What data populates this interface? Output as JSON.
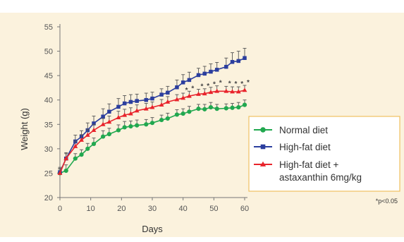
{
  "chart_data": {
    "type": "line",
    "title": "",
    "xlabel": "Days",
    "ylabel": "Weight (g)",
    "xlim": [
      0,
      60
    ],
    "ylim": [
      20,
      55
    ],
    "x_ticks": [
      0,
      10,
      20,
      30,
      40,
      50,
      60
    ],
    "y_ticks": [
      20,
      25,
      30,
      35,
      40,
      45,
      50,
      55
    ],
    "grid": false,
    "legend_position": "lower-right",
    "note": "*p<0.05",
    "x": [
      0,
      2,
      5,
      7,
      9,
      11,
      14,
      16,
      19,
      21,
      23,
      25,
      28,
      30,
      33,
      35,
      38,
      40,
      42,
      45,
      47,
      49,
      51,
      54,
      56,
      58,
      60
    ],
    "series": [
      {
        "name": "Normal diet",
        "color": "#21a84f",
        "marker": "circle",
        "values": [
          25.0,
          25.5,
          28.0,
          28.8,
          30.0,
          31.0,
          32.5,
          33.0,
          33.8,
          34.4,
          34.6,
          34.8,
          35.0,
          35.3,
          35.9,
          36.2,
          37.0,
          37.2,
          37.6,
          38.2,
          38.1,
          38.5,
          38.2,
          38.3,
          38.4,
          38.5,
          39.0
        ],
        "error": [
          0.8,
          1.2,
          1.0,
          1.0,
          1.1,
          1.2,
          1.2,
          1.2,
          1.1,
          1.2,
          1.1,
          1.1,
          1.0,
          1.1,
          1.0,
          1.1,
          1.0,
          1.0,
          1.1,
          0.9,
          1.0,
          1.0,
          0.9,
          0.9,
          0.9,
          1.0,
          1.0
        ]
      },
      {
        "name": "High-fat diet",
        "color": "#2b3e9e",
        "marker": "square",
        "values": [
          25.2,
          28.0,
          31.5,
          32.5,
          33.8,
          35.2,
          36.6,
          37.6,
          38.6,
          39.3,
          39.6,
          39.8,
          40.0,
          40.3,
          41.1,
          41.5,
          42.6,
          43.6,
          44.1,
          45.1,
          45.4,
          45.8,
          46.2,
          46.8,
          47.8,
          48.0,
          48.6
        ],
        "error": [
          1.0,
          1.2,
          1.3,
          1.2,
          1.5,
          1.5,
          1.6,
          1.6,
          1.7,
          1.6,
          1.5,
          1.4,
          1.4,
          1.3,
          1.2,
          1.3,
          1.5,
          1.6,
          1.6,
          1.4,
          1.5,
          1.6,
          1.5,
          1.8,
          1.9,
          2.0,
          2.0
        ]
      },
      {
        "name": "High-fat diet + astaxanthin 6mg/kg",
        "color": "#e8232b",
        "marker": "triangle",
        "values": [
          25.0,
          28.0,
          30.5,
          31.8,
          32.8,
          33.8,
          35.0,
          35.5,
          36.4,
          36.9,
          37.2,
          37.8,
          38.2,
          38.5,
          39.0,
          39.6,
          40.1,
          40.4,
          40.8,
          41.2,
          41.3,
          41.6,
          41.8,
          41.8,
          41.7,
          41.7,
          42.0
        ],
        "error": [
          1.0,
          1.0,
          1.1,
          1.1,
          1.2,
          1.2,
          1.2,
          1.2,
          1.3,
          1.2,
          1.2,
          1.2,
          1.1,
          1.1,
          1.1,
          1.1,
          1.0,
          1.0,
          1.0,
          1.0,
          1.0,
          1.0,
          1.1,
          1.0,
          1.0,
          1.0,
          1.0
        ],
        "significance_marks": [
          {
            "x": 40,
            "label": "*"
          },
          {
            "x": 42,
            "label": "*"
          },
          {
            "x": 45,
            "label": "*"
          },
          {
            "x": 47,
            "label": "*"
          },
          {
            "x": 49,
            "label": "*"
          },
          {
            "x": 51,
            "label": "*"
          },
          {
            "x": 54,
            "label": "*"
          },
          {
            "x": 56,
            "label": "*"
          },
          {
            "x": 58,
            "label": "*"
          },
          {
            "x": 60,
            "label": "*"
          }
        ]
      }
    ],
    "legend": [
      {
        "lines": [
          "Normal diet"
        ]
      },
      {
        "lines": [
          "High-fat diet"
        ]
      },
      {
        "lines": [
          "High-fat diet +",
          "astaxanthin 6mg/kg"
        ]
      }
    ]
  }
}
